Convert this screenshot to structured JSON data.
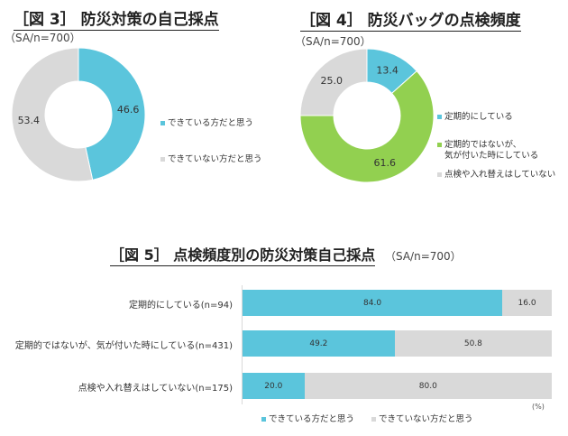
{
  "colors": {
    "yes": "#5bc5dc",
    "no": "#d9d9d9",
    "green": "#92d050"
  },
  "chart_data": [
    {
      "type": "pie",
      "title": "［図 3］ 防災対策の自己採点",
      "subtitle": "（SA/n=700）",
      "slices": [
        {
          "name": "できている方だと思う",
          "value": 46.6,
          "label": "46.6"
        },
        {
          "name": "できていない方だと思う",
          "value": 53.4,
          "label": "53.4"
        }
      ],
      "donut": true,
      "legend": "right"
    },
    {
      "type": "pie",
      "title": "［図 4］ 防災バッグの点検頻度",
      "subtitle": "（SA/n=700）",
      "slices": [
        {
          "name": "定期的にしている",
          "value": 13.4,
          "label": "13.4"
        },
        {
          "name": "定期的ではないが、気が付いた時にしている",
          "name_lines": [
            "定期的ではないが、",
            "気が付いた時にしている"
          ],
          "value": 61.6,
          "label": "61.6"
        },
        {
          "name": "点検や入れ替えはしていない",
          "value": 25.0,
          "label": "25.0"
        }
      ],
      "donut": true,
      "legend": "right"
    },
    {
      "type": "bar",
      "stacked": true,
      "orientation": "horizontal",
      "title": "［図 5］ 点検頻度別の防災対策自己採点",
      "subtitle": "（SA/n=700）",
      "unit": "(%)",
      "categories": [
        "定期的にしている(n=94)",
        "定期的ではないが、気が付いた時にしている(n=431)",
        "点検や入れ替えはしていない(n=175)"
      ],
      "series": [
        {
          "name": "できている方だと思う",
          "values": [
            84.0,
            49.2,
            20.0
          ],
          "labels": [
            "84.0",
            "49.2",
            "20.0"
          ]
        },
        {
          "name": "できていない方だと思う",
          "values": [
            16.0,
            50.8,
            80.0
          ],
          "labels": [
            "16.0",
            "50.8",
            "80.0"
          ]
        }
      ],
      "xlim": [
        0,
        100
      ],
      "legend": "bottom"
    }
  ]
}
